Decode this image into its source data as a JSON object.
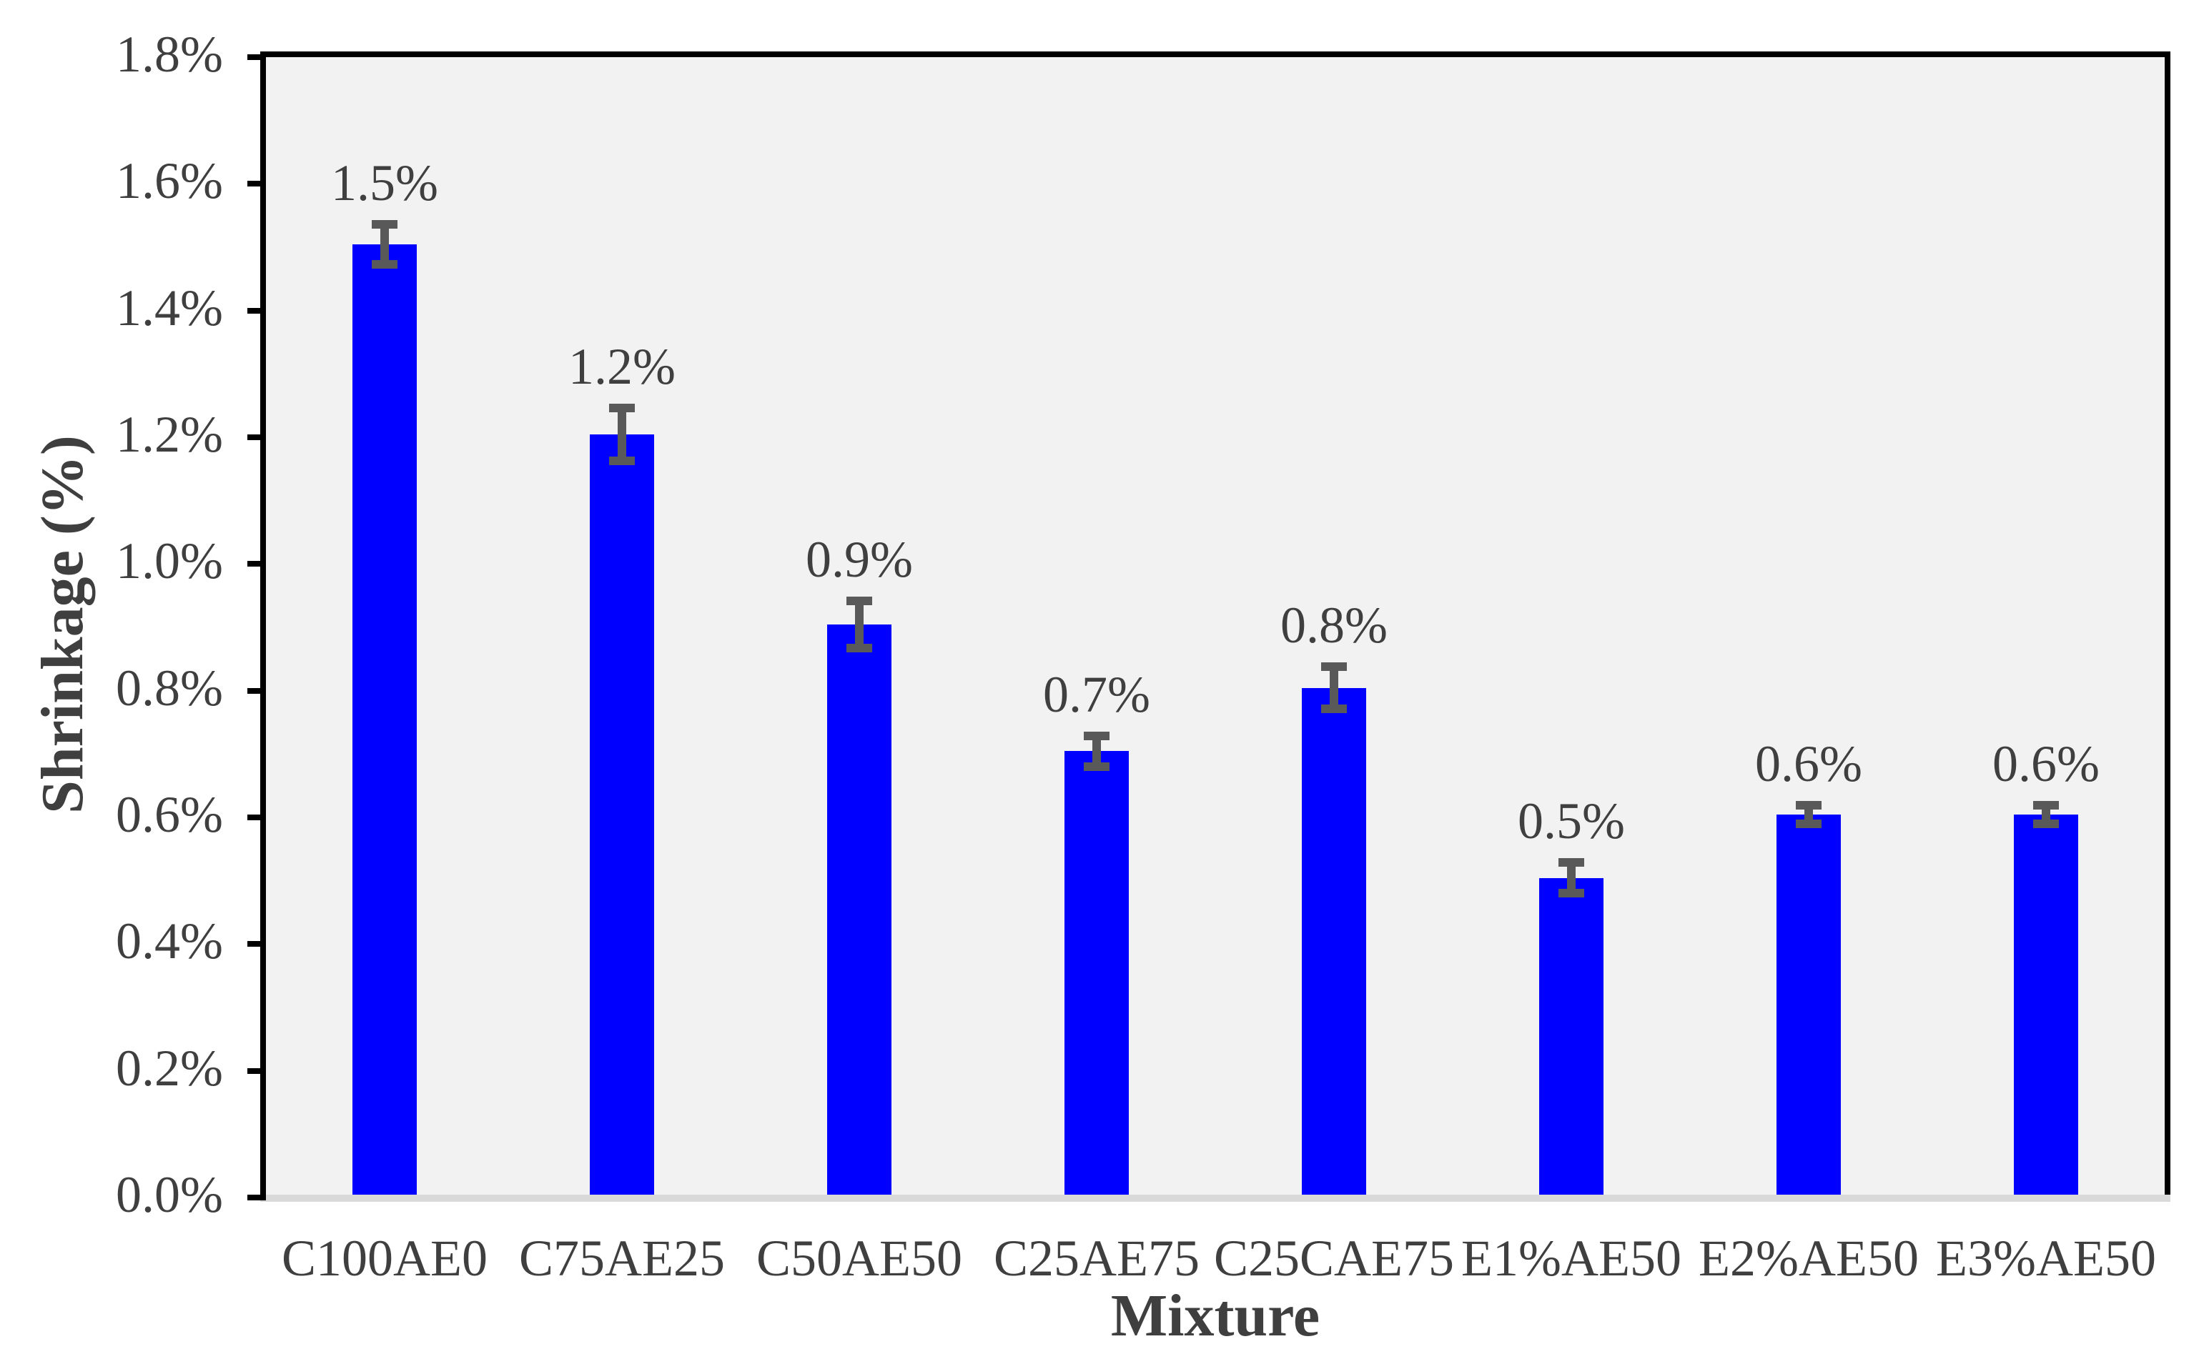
{
  "chart_data": {
    "type": "bar",
    "title": "",
    "xlabel": "Mixture",
    "ylabel": "Shrinkage (%)",
    "categories": [
      "C100AE0",
      "C75AE25",
      "C50AE50",
      "C25AE75",
      "C25CAE75",
      "E1%AE50",
      "E2%AE50",
      "E3%AE50"
    ],
    "values": [
      1.5,
      1.2,
      0.9,
      0.7,
      0.8,
      0.5,
      0.6,
      0.6
    ],
    "value_labels": [
      "1.5%",
      "1.2%",
      "0.9%",
      "0.7%",
      "0.8%",
      "0.5%",
      "0.6%",
      "0.6%"
    ],
    "error_bars": [
      0.032,
      0.042,
      0.037,
      0.024,
      0.033,
      0.024,
      0.015,
      0.015
    ],
    "y_tick_labels": [
      "0.0%",
      "0.2%",
      "0.4%",
      "0.6%",
      "0.8%",
      "1.0%",
      "1.2%",
      "1.4%",
      "1.6%",
      "1.8%"
    ],
    "y_tick_values": [
      0.0,
      0.2,
      0.4,
      0.6,
      0.8,
      1.0,
      1.2,
      1.4,
      1.6,
      1.8
    ],
    "ylim": [
      0,
      1.8
    ],
    "grid": false,
    "legend": false,
    "colors": {
      "bar": "#0000FF",
      "error_bar": "#595959",
      "text": "#3F3F3F",
      "plot_background": "#F2F2F2",
      "outer_background": "#FFFFFF",
      "axis_border": "#000000",
      "baseline": "#D9D9D9"
    }
  }
}
